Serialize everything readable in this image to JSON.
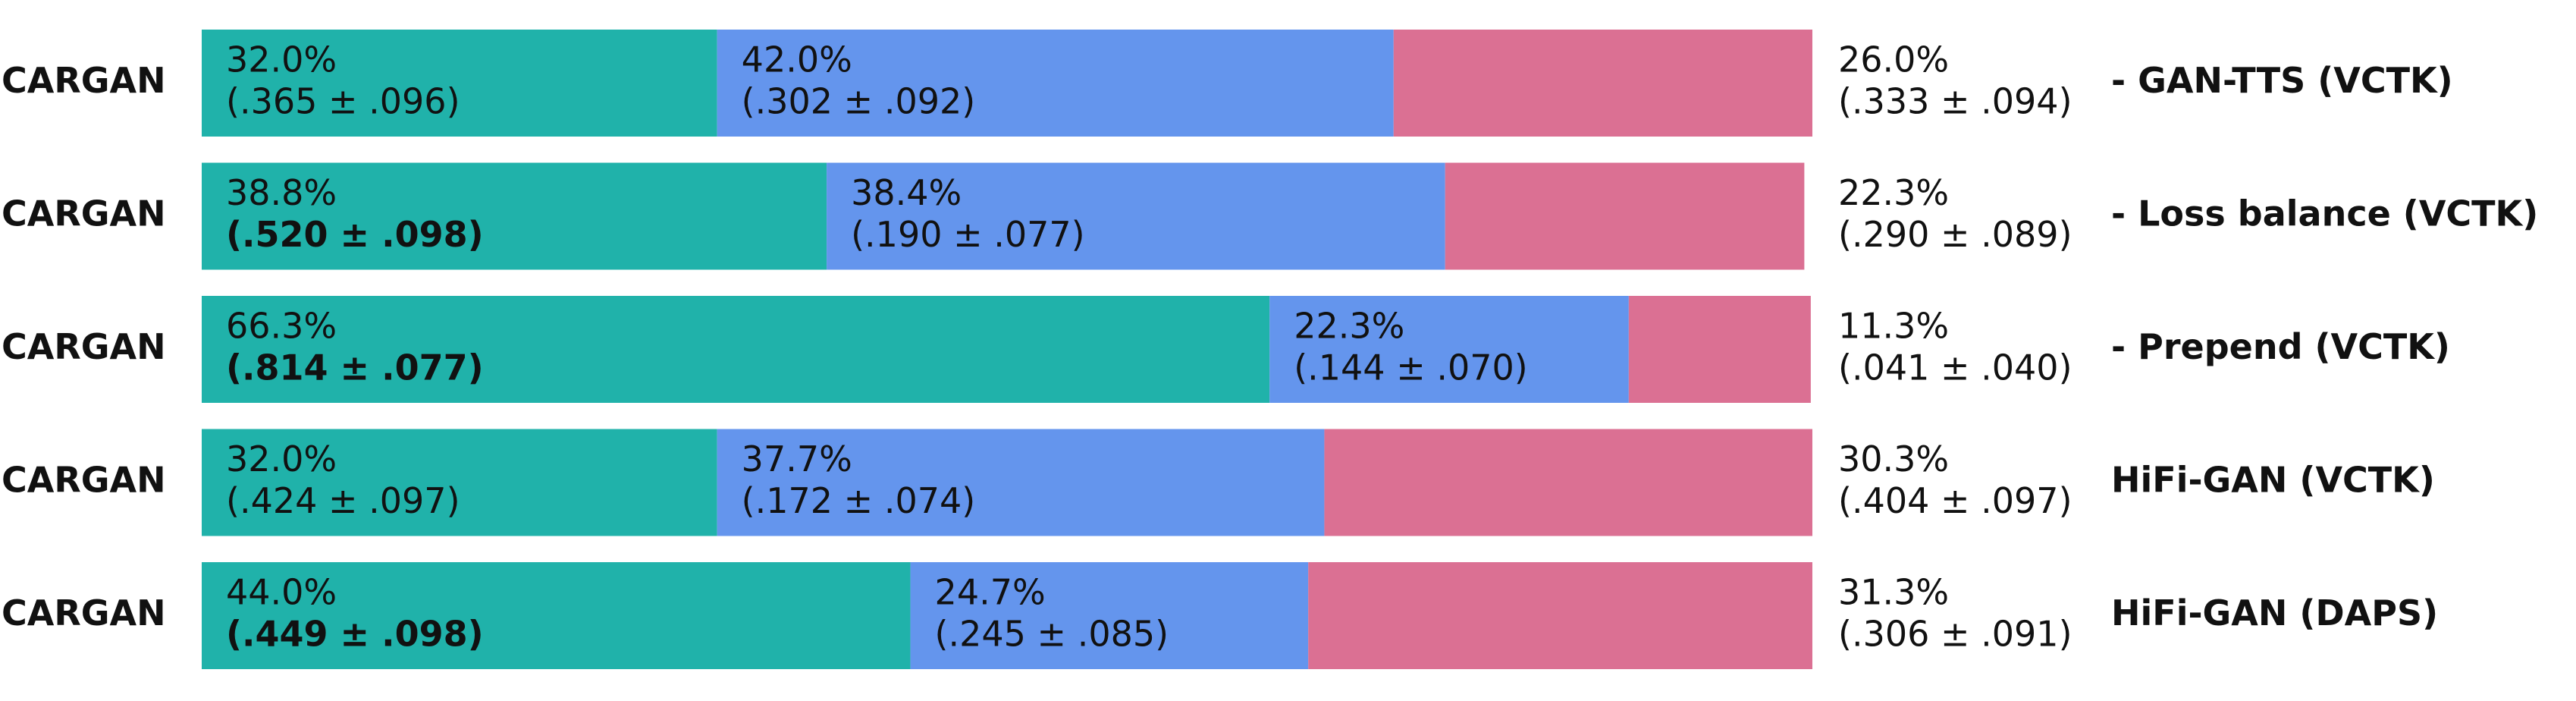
{
  "chart_data": {
    "type": "stacked_bar",
    "categories": [
      "CARGAN",
      "CARGAN",
      "CARGAN",
      "CARGAN",
      "CARGAN"
    ],
    "right_labels": [
      "- GAN-TTS (VCTK)",
      "- Loss balance (VCTK)",
      "- Prepend (VCTK)",
      "HiFi-GAN (VCTK)",
      "HiFi-GAN (DAPS)"
    ],
    "xlim": [
      0,
      100
    ],
    "series": [
      {
        "color": "#20b2aa",
        "values": [
          32.0,
          38.8,
          66.3,
          32.0,
          44.0
        ],
        "value_labels": [
          "32.0%",
          "38.8%",
          "66.3%",
          "32.0%",
          "44.0%"
        ],
        "annotations": [
          "(.365 ± .096)",
          "(.520 ± .098)",
          "(.814 ± .077)",
          "(.424 ± .097)",
          "(.449 ± .098)"
        ],
        "bold": [
          false,
          true,
          true,
          false,
          true
        ]
      },
      {
        "color": "#6495ed",
        "values": [
          42.0,
          38.4,
          22.3,
          37.7,
          24.7
        ],
        "value_labels": [
          "42.0%",
          "38.4%",
          "22.3%",
          "37.7%",
          "24.7%"
        ],
        "annotations": [
          "(.302 ± .092)",
          "(.190 ± .077)",
          "(.144 ± .070)",
          "(.172 ± .074)",
          "(.245 ± .085)"
        ],
        "bold": [
          false,
          false,
          false,
          false,
          false
        ]
      },
      {
        "color": "#db7093",
        "values": [
          26.0,
          22.3,
          11.3,
          30.3,
          31.3
        ],
        "value_labels": [
          "26.0%",
          "22.3%",
          "11.3%",
          "30.3%",
          "31.3%"
        ],
        "annotations": [
          "(.333 ± .094)",
          "(.290 ± .089)",
          "(.041 ± .040)",
          "(.404 ± .097)",
          "(.306 ± .091)"
        ],
        "bold": [
          false,
          false,
          false,
          false,
          false
        ]
      }
    ]
  }
}
